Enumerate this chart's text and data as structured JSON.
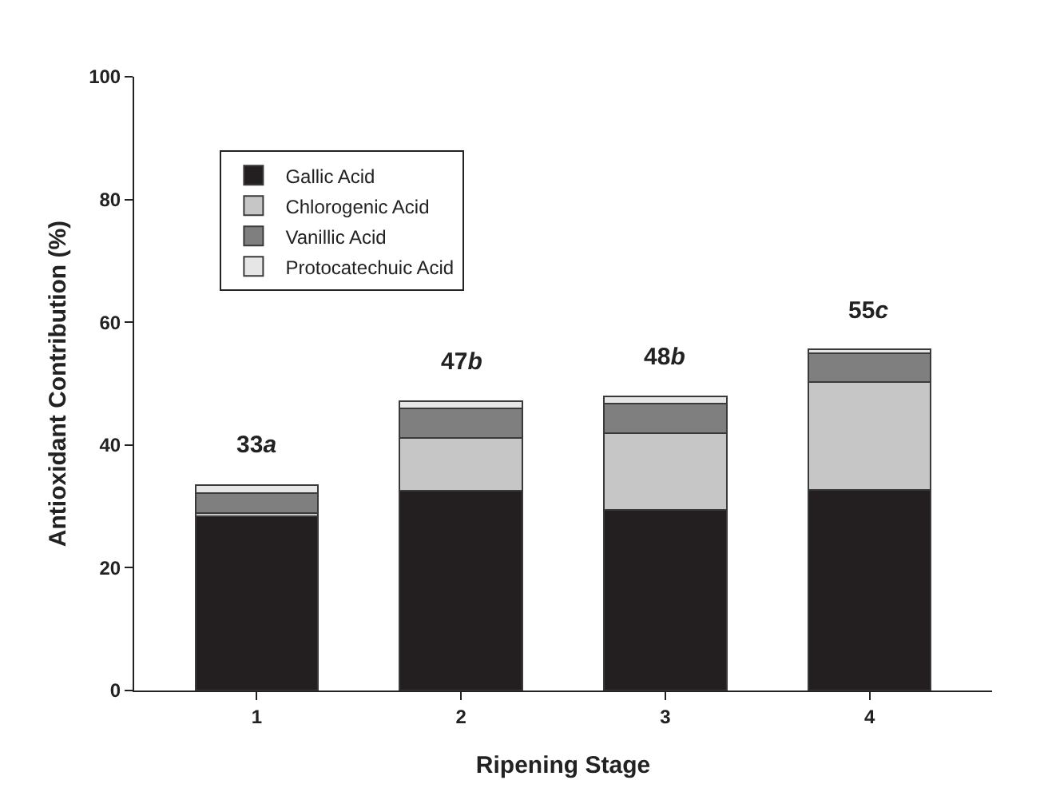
{
  "chart_data": {
    "type": "bar",
    "stacked": true,
    "xlabel": "Ripening Stage",
    "ylabel": "Antioxidant Contribution (%)",
    "categories": [
      "1",
      "2",
      "3",
      "4"
    ],
    "series": [
      {
        "name": "Gallic Acid",
        "color": "#231f20",
        "values": [
          28.4,
          32.6,
          29.4,
          32.7
        ]
      },
      {
        "name": "Chlorogenic Acid",
        "color": "#c6c6c6",
        "values": [
          0.5,
          8.5,
          12.5,
          17.5
        ]
      },
      {
        "name": "Vanillic Acid",
        "color": "#7f7f7f",
        "values": [
          3.3,
          4.9,
          4.8,
          4.8
        ]
      },
      {
        "name": "Protocatechuic Acid",
        "color": "#e6e6e6",
        "values": [
          1.3,
          1.2,
          1.2,
          0.6
        ]
      }
    ],
    "ylim": [
      0,
      100
    ],
    "yticks": [
      0,
      20,
      40,
      60,
      80,
      100
    ],
    "grid": false,
    "legend": "top left",
    "annotations": [
      {
        "text": "33a",
        "x": "1",
        "y": 33.5
      },
      {
        "text": "47b",
        "x": "2",
        "y": 47.2
      },
      {
        "text": "48b",
        "x": "3",
        "y": 47.9
      },
      {
        "text": "55c",
        "x": "4",
        "y": 55.6
      }
    ]
  }
}
